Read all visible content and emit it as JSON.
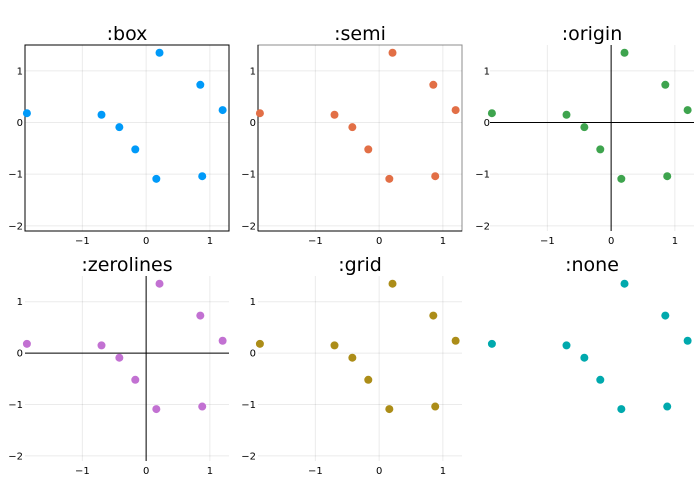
{
  "chart_data": [
    {
      "type": "scatter",
      "title": ":box",
      "color": "#009AF9",
      "frame": "box",
      "xlim": [
        -1.9,
        1.3
      ],
      "ylim": [
        -2.1,
        1.5
      ],
      "xticks": [
        -1,
        0,
        1
      ],
      "yticks": [
        -2,
        -1,
        0,
        1
      ],
      "xtick_labels": [
        "−1",
        "0",
        "1"
      ],
      "ytick_labels": [
        "−2",
        "−1",
        "0",
        "1"
      ],
      "grid": true,
      "x": [
        -1.87,
        -0.7,
        -0.42,
        -0.17,
        0.16,
        0.21,
        0.85,
        0.88,
        1.2
      ],
      "y": [
        0.18,
        0.15,
        -0.09,
        -0.52,
        -1.09,
        1.35,
        0.73,
        -1.04,
        0.24
      ]
    },
    {
      "type": "scatter",
      "title": ":semi",
      "color": "#E26F46",
      "frame": "semi",
      "xlim": [
        -1.9,
        1.3
      ],
      "ylim": [
        -2.1,
        1.5
      ],
      "xticks": [
        -1,
        0,
        1
      ],
      "yticks": [
        -2,
        -1,
        0,
        1
      ],
      "xtick_labels": [
        "−1",
        "0",
        "1"
      ],
      "ytick_labels": [
        "−2",
        "−1",
        "0",
        "1"
      ],
      "grid": true,
      "x": [
        -1.87,
        -0.7,
        -0.42,
        -0.17,
        0.16,
        0.21,
        0.85,
        0.88,
        1.2
      ],
      "y": [
        0.18,
        0.15,
        -0.09,
        -0.52,
        -1.09,
        1.35,
        0.73,
        -1.04,
        0.24
      ]
    },
    {
      "type": "scatter",
      "title": ":origin",
      "color": "#3EA44E",
      "frame": "origin",
      "xlim": [
        -1.9,
        1.3
      ],
      "ylim": [
        -2.1,
        1.5
      ],
      "xticks": [
        -1,
        0,
        1
      ],
      "yticks": [
        -2,
        -1,
        0,
        1
      ],
      "xtick_labels": [
        "−1",
        "0",
        "1"
      ],
      "ytick_labels": [
        "−2",
        "−1",
        "0",
        "1"
      ],
      "grid": true,
      "x": [
        -1.87,
        -0.7,
        -0.42,
        -0.17,
        0.16,
        0.21,
        0.85,
        0.88,
        1.2
      ],
      "y": [
        0.18,
        0.15,
        -0.09,
        -0.52,
        -1.09,
        1.35,
        0.73,
        -1.04,
        0.24
      ]
    },
    {
      "type": "scatter",
      "title": ":zerolines",
      "color": "#C271D2",
      "frame": "zerolines",
      "xlim": [
        -1.9,
        1.3
      ],
      "ylim": [
        -2.1,
        1.5
      ],
      "xticks": [
        -1,
        0,
        1
      ],
      "yticks": [
        -2,
        -1,
        0,
        1
      ],
      "xtick_labels": [
        "−1",
        "0",
        "1"
      ],
      "ytick_labels": [
        "−2",
        "−1",
        "0",
        "1"
      ],
      "grid": true,
      "x": [
        -1.87,
        -0.7,
        -0.42,
        -0.17,
        0.16,
        0.21,
        0.85,
        0.88,
        1.2
      ],
      "y": [
        0.18,
        0.15,
        -0.09,
        -0.52,
        -1.09,
        1.35,
        0.73,
        -1.04,
        0.24
      ]
    },
    {
      "type": "scatter",
      "title": ":grid",
      "color": "#AC8D18",
      "frame": "grid",
      "xlim": [
        -1.9,
        1.3
      ],
      "ylim": [
        -2.1,
        1.5
      ],
      "xticks": [
        -1,
        0,
        1
      ],
      "yticks": [
        -2,
        -1,
        0,
        1
      ],
      "xtick_labels": [
        "−1",
        "0",
        "1"
      ],
      "ytick_labels": [
        "−2",
        "−1",
        "0",
        "1"
      ],
      "grid": true,
      "x": [
        -1.87,
        -0.7,
        -0.42,
        -0.17,
        0.16,
        0.21,
        0.85,
        0.88,
        1.2
      ],
      "y": [
        0.18,
        0.15,
        -0.09,
        -0.52,
        -1.09,
        1.35,
        0.73,
        -1.04,
        0.24
      ]
    },
    {
      "type": "scatter",
      "title": ":none",
      "color": "#00A9AD",
      "frame": "none",
      "xlim": [
        -1.9,
        1.3
      ],
      "ylim": [
        -2.1,
        1.5
      ],
      "xticks": [],
      "yticks": [],
      "xtick_labels": [],
      "ytick_labels": [],
      "grid": false,
      "x": [
        -1.87,
        -0.7,
        -0.42,
        -0.17,
        0.16,
        0.21,
        0.85,
        0.88,
        1.2
      ],
      "y": [
        0.18,
        0.15,
        -0.09,
        -0.52,
        -1.09,
        1.35,
        0.73,
        -1.04,
        0.24
      ]
    }
  ]
}
